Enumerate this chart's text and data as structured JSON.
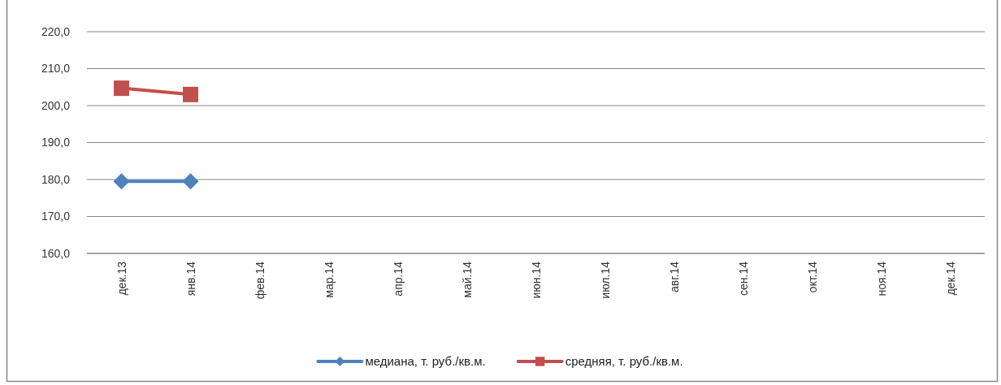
{
  "chart_data": {
    "type": "line",
    "categories": [
      "дек.13",
      "янв.14",
      "фев.14",
      "мар.14",
      "апр.14",
      "май.14",
      "июн.14",
      "июл.14",
      "авг.14",
      "сен.14",
      "окт.14",
      "ноя.14",
      "дек.14"
    ],
    "series": [
      {
        "name": "медиана, т. руб./кв.м.",
        "color": "#4f81bd",
        "marker": "diamond",
        "values": [
          179.5,
          179.5,
          null,
          null,
          null,
          null,
          null,
          null,
          null,
          null,
          null,
          null,
          null
        ]
      },
      {
        "name": "средняя, т. руб./кв.м.",
        "color": "#c0504d",
        "marker": "square",
        "values": [
          204.7,
          203.0,
          null,
          null,
          null,
          null,
          null,
          null,
          null,
          null,
          null,
          null,
          null
        ]
      }
    ],
    "ylim": [
      160,
      220
    ],
    "yticks": [
      {
        "value": 160,
        "label": "160,0"
      },
      {
        "value": 170,
        "label": "170,0"
      },
      {
        "value": 180,
        "label": "180,0"
      },
      {
        "value": 190,
        "label": "190,0"
      },
      {
        "value": 200,
        "label": "200,0"
      },
      {
        "value": 210,
        "label": "210,0"
      },
      {
        "value": 220,
        "label": "220,0"
      }
    ],
    "grid": "y",
    "legend": "bottom",
    "line_style": "solid"
  }
}
